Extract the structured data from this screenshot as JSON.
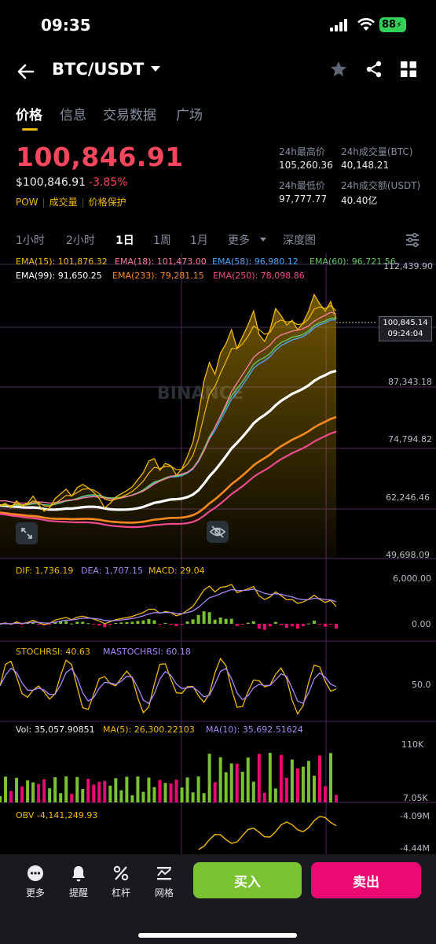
{
  "status": {
    "time": "09:35",
    "battery": "88"
  },
  "header": {
    "title": "BTC/USDT"
  },
  "tabs": [
    "价格",
    "信息",
    "交易数据",
    "广场"
  ],
  "price": {
    "last": "100,846.91",
    "usd": "$100,846.91",
    "change": "-3.85%",
    "tags": [
      "POW",
      "成交量",
      "价格保护"
    ]
  },
  "stats": {
    "high_label": "24h最高价",
    "high": "105,260.36",
    "low_label": "24h最低价",
    "low": "97,777.77",
    "vol_btc_label": "24h成交量(BTC)",
    "vol_btc": "40,148.21",
    "vol_usdt_label": "24h成交额(USDT)",
    "vol_usdt": "40.40亿"
  },
  "intervals": {
    "items": [
      "1小时",
      "2小时",
      "1日",
      "1周",
      "1月",
      "更多",
      "深度图"
    ],
    "active": "1日"
  },
  "indicators": {
    "ema15": "EMA(15): 101,876.32",
    "ema18": "EMA(18): 101,473.00",
    "ema58": "EMA(58): 96,980.12",
    "ema60": "EMA(60): 96,721.56",
    "ema99": "EMA(99): 91,650.25",
    "ema233": "EMA(233): 79,281.15",
    "ema250": "EMA(250): 78,098.86",
    "dif": "DIF: 1,736.19",
    "dea": "DEA: 1,707.15",
    "macd": "MACD: 29.04",
    "stochrsi": "STOCHRSI: 40.63",
    "mastochrsi": "MASTOCHRSI: 60.18",
    "vol": "Vol: 35,057.90851",
    "ma5": "MA(5): 26,300.22103",
    "ma10": "MA(10): 35,692.51624",
    "obv": "OBV -4,141,249.93"
  },
  "chart_data": {
    "type": "line",
    "price_axis": [
      "112,439.90",
      "87,343.18",
      "74,794.82",
      "62,246.46",
      "49,698.09"
    ],
    "current_price_tag": "100,845.14",
    "countdown": "09:24:04",
    "watermark": "BINANCE",
    "macd_axis": [
      "6,000.00",
      "0.00"
    ],
    "stoch_axis": [
      "50.0"
    ],
    "vol_axis": [
      "110K",
      "7.05K"
    ],
    "obv_axis": [
      "-4.09M",
      "-4.44M"
    ],
    "price_close": [
      61000,
      61500,
      60500,
      62000,
      60800,
      61500,
      63000,
      61200,
      59800,
      60500,
      62500,
      63500,
      64500,
      63000,
      64800,
      65500,
      64800,
      63800,
      62500,
      60500,
      61500,
      62800,
      63500,
      64200,
      65000,
      66500,
      68000,
      70500,
      71000,
      68500,
      70000,
      69500,
      67500,
      68800,
      71500,
      74500,
      80500,
      87500,
      91500,
      89000,
      93500,
      95500,
      98500,
      94500,
      97000,
      99500,
      102500,
      97500,
      96000,
      98500,
      103000,
      101500,
      99500,
      100500,
      98500,
      100000,
      102500,
      106000,
      104000,
      102500,
      104500,
      100846.91
    ],
    "ema_fast": [
      62000,
      62000,
      61800,
      61600,
      61500,
      61500,
      61600,
      61800,
      61700,
      61500,
      61600,
      61800,
      62100,
      62200,
      62300,
      62600,
      62800,
      62900,
      62800,
      62600,
      62400,
      62400,
      62600,
      62900,
      63200,
      63600,
      64100,
      64800,
      65600,
      66200,
      66700,
      67200,
      67500,
      67700,
      68100,
      68900,
      70500,
      72600,
      75300,
      77700,
      80100,
      82600,
      85300,
      87100,
      88900,
      90700,
      92600,
      93600,
      94300,
      95200,
      96600,
      97400,
      97800,
      98200,
      98400,
      98700,
      99300,
      100300,
      101000,
      101600,
      102200,
      101876
    ]
  },
  "bottom": {
    "more": "更多",
    "alert": "提醒",
    "leverage": "杠杆",
    "grid": "网格",
    "buy": "买入",
    "sell": "卖出"
  }
}
